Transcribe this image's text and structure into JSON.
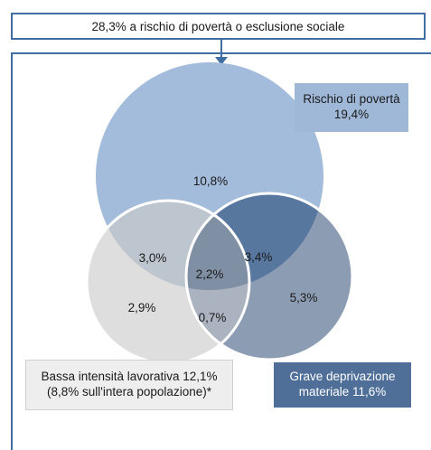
{
  "header": {
    "text": "28,3% a rischio di povertà o esclusione sociale"
  },
  "colors": {
    "frame": "#3f6ea3",
    "poverty_circle": "#9fb8d8",
    "intensity_circle": "#e2e2e2",
    "deprivation_circle": "#4f6f98"
  },
  "regions": {
    "poverty_only": "10,8%",
    "poverty_intensity": "3,0%",
    "poverty_deprivation": "3,4%",
    "all_three": "2,2%",
    "intensity_only": "2,9%",
    "intensity_deprivation": "0,7%",
    "deprivation_only": "5,3%"
  },
  "legends": {
    "poverty": {
      "line1": "Rischio di povertà",
      "line2": "19,4%"
    },
    "intensity": {
      "line1": "Bassa intensità lavorativa 12,1%",
      "line2": "(8,8% sull'intera popolazione)*"
    },
    "deprivation": {
      "line1": "Grave deprivazione",
      "line2": "materiale 11,6%"
    }
  }
}
